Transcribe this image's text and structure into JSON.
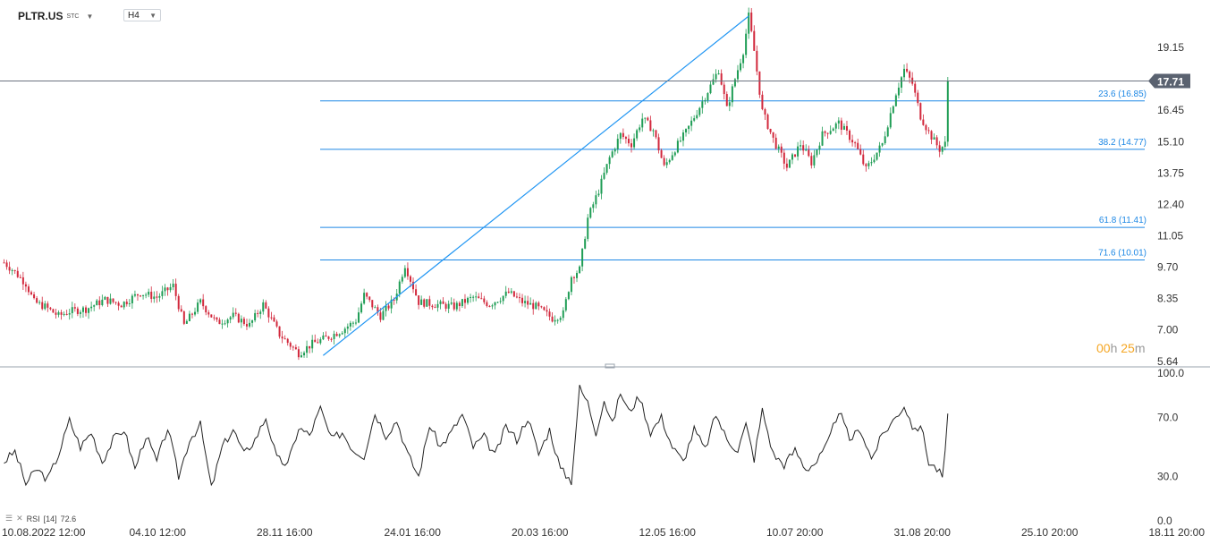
{
  "header": {
    "symbol": "PLTR.US",
    "symbol_suffix": "STC",
    "timeframe": "H4"
  },
  "countdown": {
    "hours": "00",
    "h_unit": "h",
    "minutes": "25",
    "m_unit": "m"
  },
  "rsi_label": {
    "name": "RSI",
    "period": "[14]",
    "value": "72.6"
  },
  "colors": {
    "up": "#1f9d55",
    "down": "#d2283c",
    "fib_line": "#1e88e5",
    "trend_line": "#2196f3",
    "rsi_line": "#222222",
    "price_tag": "#5a6270",
    "countdown": "#f5a623"
  },
  "chart_data": [
    {
      "type": "candlestick",
      "title": "",
      "price_axis": {
        "min": 5.64,
        "max": 20.5,
        "ticks": [
          "19.15",
          "16.45",
          "15.10",
          "13.75",
          "12.40",
          "11.05",
          "9.70",
          "8.35",
          "7.00",
          "5.64"
        ]
      },
      "time_axis": {
        "ticks": [
          "10.08.2022 12:00",
          "04.10 12:00",
          "28.11 16:00",
          "24.01 16:00",
          "20.03 16:00",
          "12.05 16:00",
          "10.07 20:00",
          "31.08 20:00",
          "25.10 20:00",
          "18.11 20:00"
        ]
      },
      "last_price": "17.71",
      "fibonacci": [
        {
          "level": "23.6",
          "price": "16.85",
          "label": "23.6 (16.85)"
        },
        {
          "level": "38.2",
          "price": "14.77",
          "label": "38.2 (14.77)"
        },
        {
          "level": "61.8",
          "price": "11.41",
          "label": "61.8 (11.41)"
        },
        {
          "level": "71.6",
          "price": "10.01",
          "label": "71.6 (10.01)"
        }
      ],
      "trend_line": {
        "from_price": 5.9,
        "to_price": 20.5
      },
      "close_path": [
        [
          0,
          9.9
        ],
        [
          3,
          9.6
        ],
        [
          8,
          9.0
        ],
        [
          11,
          8.2
        ],
        [
          15,
          8.0
        ],
        [
          20,
          7.6
        ],
        [
          24,
          7.8
        ],
        [
          30,
          7.9
        ],
        [
          37,
          8.3
        ],
        [
          43,
          8.1
        ],
        [
          50,
          8.6
        ],
        [
          56,
          8.4
        ],
        [
          62,
          8.9
        ],
        [
          66,
          7.2
        ],
        [
          72,
          8.2
        ],
        [
          78,
          7.3
        ],
        [
          84,
          7.6
        ],
        [
          90,
          7.2
        ],
        [
          95,
          8.1
        ],
        [
          101,
          6.8
        ],
        [
          108,
          6.0
        ],
        [
          113,
          6.4
        ],
        [
          119,
          6.7
        ],
        [
          124,
          7.0
        ],
        [
          129,
          7.4
        ],
        [
          132,
          8.5
        ],
        [
          138,
          7.6
        ],
        [
          143,
          8.3
        ],
        [
          147,
          9.8
        ],
        [
          152,
          8.2
        ],
        [
          158,
          8.1
        ],
        [
          165,
          8.0
        ],
        [
          172,
          8.4
        ],
        [
          178,
          8.1
        ],
        [
          185,
          8.6
        ],
        [
          190,
          8.2
        ],
        [
          195,
          8.0
        ],
        [
          201,
          7.5
        ],
        [
          205,
          7.7
        ],
        [
          208,
          9.3
        ],
        [
          211,
          9.6
        ],
        [
          214,
          11.8
        ],
        [
          218,
          13.0
        ],
        [
          222,
          14.4
        ],
        [
          226,
          15.4
        ],
        [
          230,
          15.0
        ],
        [
          234,
          16.1
        ],
        [
          238,
          15.6
        ],
        [
          242,
          14.0
        ],
        [
          246,
          14.8
        ],
        [
          250,
          15.5
        ],
        [
          255,
          16.6
        ],
        [
          259,
          17.5
        ],
        [
          262,
          18.2
        ],
        [
          265,
          16.5
        ],
        [
          268,
          17.8
        ],
        [
          271,
          19.0
        ],
        [
          273,
          20.5
        ],
        [
          275,
          19.0
        ],
        [
          278,
          16.4
        ],
        [
          282,
          15.2
        ],
        [
          287,
          14.0
        ],
        [
          292,
          15.0
        ],
        [
          296,
          14.2
        ],
        [
          300,
          15.4
        ],
        [
          306,
          15.9
        ],
        [
          312,
          15.0
        ],
        [
          316,
          13.9
        ],
        [
          322,
          15.0
        ],
        [
          327,
          17.2
        ],
        [
          330,
          18.2
        ],
        [
          333,
          17.6
        ],
        [
          336,
          16.2
        ],
        [
          339,
          15.5
        ],
        [
          343,
          14.77
        ],
        [
          345,
          15.0
        ],
        [
          346,
          17.71
        ]
      ]
    },
    {
      "type": "line",
      "title": "",
      "name": "RSI [14]",
      "y_axis": {
        "min": 0,
        "max": 100,
        "ticks": [
          "100.0",
          "70.0",
          "30.0",
          "0.0"
        ]
      },
      "last_value": 72.6,
      "values": [
        [
          0,
          40
        ],
        [
          4,
          47
        ],
        [
          8,
          25
        ],
        [
          12,
          35
        ],
        [
          16,
          28
        ],
        [
          20,
          45
        ],
        [
          24,
          68
        ],
        [
          28,
          50
        ],
        [
          32,
          60
        ],
        [
          36,
          40
        ],
        [
          40,
          55
        ],
        [
          44,
          62
        ],
        [
          48,
          35
        ],
        [
          52,
          58
        ],
        [
          56,
          40
        ],
        [
          60,
          63
        ],
        [
          64,
          30
        ],
        [
          68,
          55
        ],
        [
          72,
          65
        ],
        [
          76,
          22
        ],
        [
          80,
          50
        ],
        [
          84,
          62
        ],
        [
          88,
          45
        ],
        [
          92,
          55
        ],
        [
          96,
          70
        ],
        [
          100,
          42
        ],
        [
          104,
          38
        ],
        [
          108,
          63
        ],
        [
          112,
          58
        ],
        [
          116,
          76
        ],
        [
          120,
          55
        ],
        [
          124,
          60
        ],
        [
          128,
          48
        ],
        [
          132,
          44
        ],
        [
          136,
          73
        ],
        [
          140,
          58
        ],
        [
          144,
          68
        ],
        [
          148,
          45
        ],
        [
          152,
          30
        ],
        [
          156,
          65
        ],
        [
          160,
          50
        ],
        [
          164,
          60
        ],
        [
          168,
          72
        ],
        [
          172,
          50
        ],
        [
          176,
          57
        ],
        [
          180,
          44
        ],
        [
          184,
          64
        ],
        [
          188,
          55
        ],
        [
          192,
          70
        ],
        [
          196,
          45
        ],
        [
          200,
          62
        ],
        [
          204,
          35
        ],
        [
          208,
          27
        ],
        [
          211,
          90
        ],
        [
          214,
          80
        ],
        [
          217,
          60
        ],
        [
          220,
          82
        ],
        [
          223,
          65
        ],
        [
          226,
          87
        ],
        [
          229,
          74
        ],
        [
          233,
          84
        ],
        [
          237,
          60
        ],
        [
          241,
          70
        ],
        [
          245,
          50
        ],
        [
          249,
          40
        ],
        [
          253,
          62
        ],
        [
          257,
          48
        ],
        [
          261,
          72
        ],
        [
          265,
          55
        ],
        [
          269,
          48
        ],
        [
          272,
          65
        ],
        [
          275,
          42
        ],
        [
          278,
          75
        ],
        [
          282,
          45
        ],
        [
          286,
          38
        ],
        [
          290,
          48
        ],
        [
          294,
          35
        ],
        [
          298,
          40
        ],
        [
          302,
          52
        ],
        [
          306,
          75
        ],
        [
          310,
          55
        ],
        [
          314,
          62
        ],
        [
          318,
          42
        ],
        [
          322,
          58
        ],
        [
          326,
          68
        ],
        [
          330,
          78
        ],
        [
          334,
          60
        ],
        [
          336,
          66
        ],
        [
          339,
          40
        ],
        [
          342,
          35
        ],
        [
          344,
          30
        ],
        [
          345,
          45
        ],
        [
          346,
          72.6
        ]
      ]
    }
  ]
}
